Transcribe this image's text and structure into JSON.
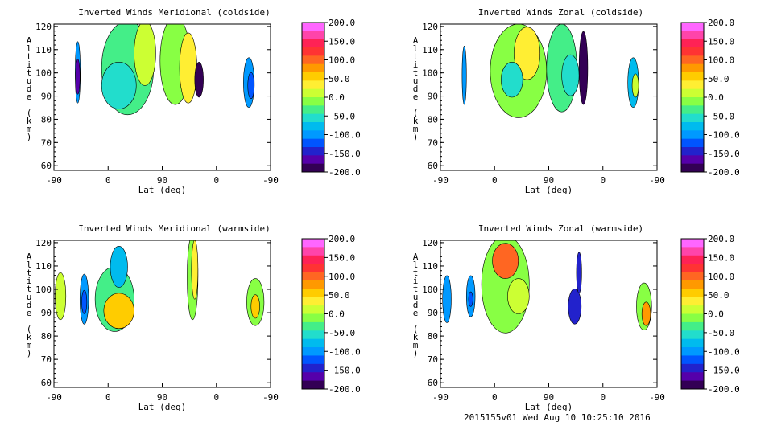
{
  "footer": "2015155v01 Wed Aug 10 10:25:10 2016",
  "colorbar": {
    "ticks": [
      "200.0",
      "150.0",
      "100.0",
      "50.0",
      "0.0",
      "-50.0",
      "-100.0",
      "-150.0",
      "-200.0"
    ],
    "colors": [
      "#ff66ff",
      "#ff44aa",
      "#ff2255",
      "#ff3333",
      "#ff6622",
      "#ff9900",
      "#ffcc00",
      "#ffee33",
      "#ccff33",
      "#88ff44",
      "#44ee88",
      "#22ddcc",
      "#00bbee",
      "#0099ff",
      "#0055ff",
      "#2222cc",
      "#5500aa",
      "#330055"
    ]
  },
  "chart_data": [
    {
      "type": "heatmap",
      "title": "Inverted Winds Meridional (coldside)",
      "xlabel": "Lat (deg)",
      "ylabel": "Altitude (km)",
      "x_tick_labels": [
        "-90",
        "0",
        "90",
        "0",
        "-90"
      ],
      "y_ticks": [
        60,
        70,
        80,
        90,
        100,
        110,
        120
      ],
      "ylim": [
        58,
        121
      ],
      "zlim": [
        -200,
        200
      ],
      "legend": "colorbar-right"
    },
    {
      "type": "heatmap",
      "title": "Inverted Winds Zonal (coldside)",
      "xlabel": "Lat (deg)",
      "ylabel": "Altitude (km)",
      "x_tick_labels": [
        "-90",
        "0",
        "90",
        "0",
        "-90"
      ],
      "y_ticks": [
        60,
        70,
        80,
        90,
        100,
        110,
        120
      ],
      "ylim": [
        58,
        121
      ],
      "zlim": [
        -200,
        200
      ],
      "legend": "colorbar-right"
    },
    {
      "type": "heatmap",
      "title": "Inverted Winds Meridional (warmside)",
      "xlabel": "Lat (deg)",
      "ylabel": "Altitude (km)",
      "x_tick_labels": [
        "-90",
        "0",
        "90",
        "0",
        "-90"
      ],
      "y_ticks": [
        60,
        70,
        80,
        90,
        100,
        110,
        120
      ],
      "ylim": [
        58,
        121
      ],
      "zlim": [
        -200,
        200
      ],
      "legend": "colorbar-right"
    },
    {
      "type": "heatmap",
      "title": "Inverted Winds Zonal (warmside)",
      "xlabel": "Lat (deg)",
      "ylabel": "Altitude (km)",
      "x_tick_labels": [
        "-90",
        "0",
        "90",
        "0",
        "-90"
      ],
      "y_ticks": [
        60,
        70,
        80,
        90,
        100,
        110,
        120
      ],
      "ylim": [
        58,
        121
      ],
      "zlim": [
        -200,
        200
      ],
      "legend": "colorbar-right"
    }
  ]
}
